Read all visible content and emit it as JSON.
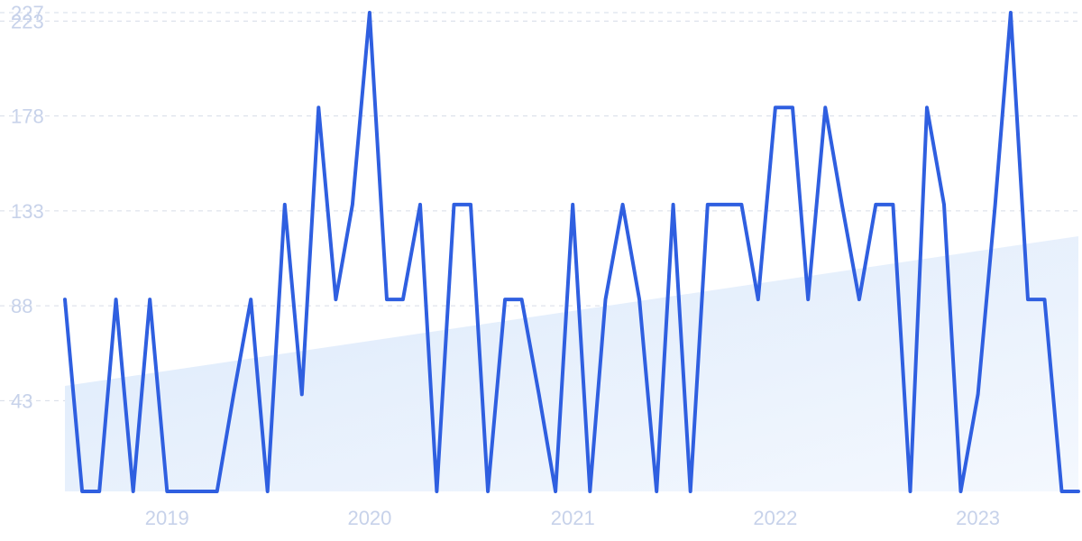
{
  "chart_data": {
    "type": "line",
    "title": "",
    "xlabel": "",
    "ylabel": "",
    "y_ticks": [
      43,
      88,
      133,
      178,
      223,
      227
    ],
    "x_ticks": [
      {
        "label": "2019",
        "date": "2019-01-01"
      },
      {
        "label": "2020",
        "date": "2020-01-01"
      },
      {
        "label": "2021",
        "date": "2021-01-01"
      },
      {
        "label": "2022",
        "date": "2022-01-01"
      },
      {
        "label": "2023",
        "date": "2023-01-01"
      }
    ],
    "xlim": [
      "2018-07-01",
      "2023-07-01"
    ],
    "ylim": [
      0,
      227
    ],
    "grid": true,
    "colors": {
      "line": "#2f5fe0",
      "area_top": "#dbe9fb",
      "area_bottom": "#f4f8fe",
      "grid": "#d6dce8",
      "tick_text": "#c7d2ea"
    },
    "series": [
      {
        "x": [
          "2018-07-01",
          "2018-08-01",
          "2018-09-01",
          "2018-10-01",
          "2018-11-01",
          "2018-12-01",
          "2019-01-01",
          "2019-02-01",
          "2019-03-01",
          "2019-04-01",
          "2019-05-01",
          "2019-06-01",
          "2019-07-01",
          "2019-08-01",
          "2019-09-01",
          "2019-10-01",
          "2019-11-01",
          "2019-12-01",
          "2020-01-01",
          "2020-02-01",
          "2020-03-01",
          "2020-04-01",
          "2020-05-01",
          "2020-06-01",
          "2020-07-01",
          "2020-08-01",
          "2020-09-01",
          "2020-10-01",
          "2020-11-01",
          "2020-12-01",
          "2021-01-01",
          "2021-02-01",
          "2021-03-01",
          "2021-04-01",
          "2021-05-01",
          "2021-06-01",
          "2021-07-01",
          "2021-08-01",
          "2021-09-01",
          "2021-10-01",
          "2021-11-01",
          "2021-12-01",
          "2022-01-01",
          "2022-02-01",
          "2022-03-01",
          "2022-04-01",
          "2022-05-01",
          "2022-06-01",
          "2022-07-01",
          "2022-08-01",
          "2022-09-01",
          "2022-10-01",
          "2022-11-01",
          "2022-12-01",
          "2023-01-01",
          "2023-02-01",
          "2023-03-01",
          "2023-04-01",
          "2023-05-01",
          "2023-06-01",
          "2023-07-01"
        ],
        "values": [
          91,
          0,
          0,
          91,
          0,
          91,
          0,
          0,
          0,
          0,
          46,
          91,
          0,
          136,
          46,
          182,
          91,
          136,
          227,
          91,
          91,
          136,
          0,
          136,
          136,
          0,
          91,
          91,
          46,
          0,
          136,
          0,
          91,
          136,
          91,
          0,
          136,
          0,
          136,
          136,
          136,
          91,
          182,
          182,
          91,
          182,
          136,
          91,
          136,
          136,
          0,
          182,
          136,
          0,
          46,
          136,
          227,
          91,
          91,
          0,
          0
        ]
      },
      {
        "x": [
          "2018-07-01",
          "2023-07-01"
        ],
        "values": [
          50,
          121
        ]
      }
    ]
  }
}
